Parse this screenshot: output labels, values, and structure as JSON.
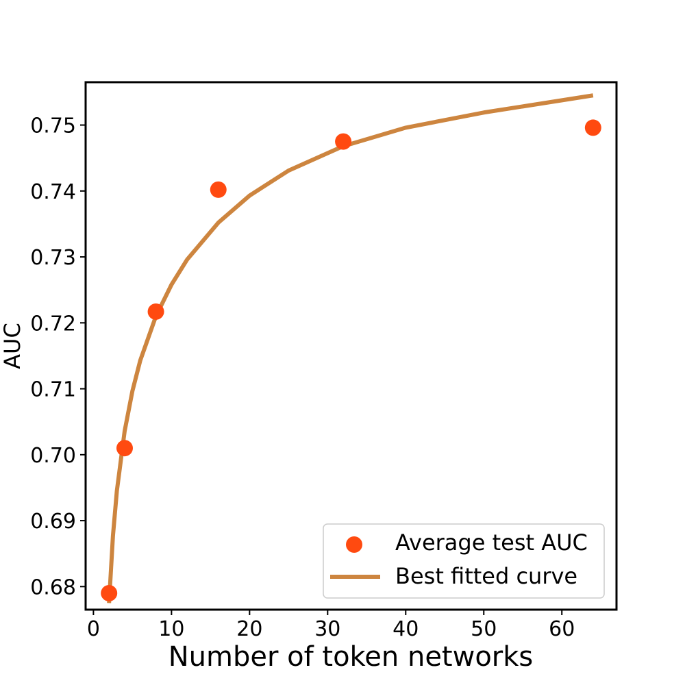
{
  "chart_data": {
    "type": "scatter",
    "xlabel": "Number of token networks",
    "ylabel": "AUC",
    "xlim": [
      -1,
      67
    ],
    "ylim": [
      0.6765,
      0.7565
    ],
    "xticks": [
      0,
      10,
      20,
      30,
      40,
      50,
      60
    ],
    "yticks": [
      0.68,
      0.69,
      0.7,
      0.71,
      0.72,
      0.73,
      0.74,
      0.75
    ],
    "xtick_labels": [
      "0",
      "10",
      "20",
      "30",
      "40",
      "50",
      "60"
    ],
    "ytick_labels": [
      "0.68",
      "0.69",
      "0.70",
      "0.71",
      "0.72",
      "0.73",
      "0.74",
      "0.75"
    ],
    "grid": false,
    "legend_position": "lower-right",
    "series": [
      {
        "name": "Average test AUC",
        "kind": "scatter",
        "color": "#ff4a10",
        "x": [
          2,
          4,
          8,
          16,
          32,
          64
        ],
        "y": [
          0.679,
          0.701,
          0.7217,
          0.7402,
          0.7475,
          0.7496
        ]
      },
      {
        "name": "Best fitted curve",
        "kind": "line",
        "color": "#cd853f",
        "x": [
          2,
          2.5,
          3,
          4,
          5,
          6,
          8,
          10,
          12,
          16,
          20,
          25,
          32,
          40,
          50,
          64
        ],
        "y": [
          0.6775,
          0.6877,
          0.6945,
          0.7036,
          0.7097,
          0.7143,
          0.721,
          0.7258,
          0.7296,
          0.7352,
          0.7393,
          0.7431,
          0.7468,
          0.7496,
          0.7519,
          0.7545
        ]
      }
    ]
  }
}
